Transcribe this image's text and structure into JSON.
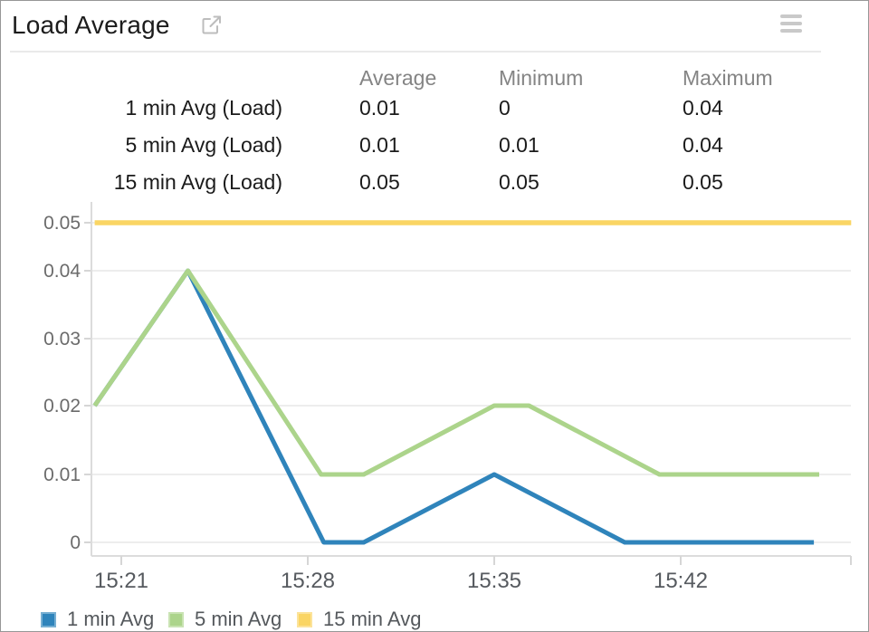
{
  "header": {
    "title": "Load Average"
  },
  "stats_table": {
    "columns": [
      "Average",
      "Minimum",
      "Maximum"
    ],
    "rows": [
      {
        "label": "1 min Avg (Load)",
        "average": "0.01",
        "minimum": "0",
        "maximum": "0.04"
      },
      {
        "label": "5 min Avg (Load)",
        "average": "0.01",
        "minimum": "0.01",
        "maximum": "0.04"
      },
      {
        "label": "15 min Avg (Load)",
        "average": "0.05",
        "minimum": "0.05",
        "maximum": "0.05"
      }
    ]
  },
  "chart_data": {
    "type": "line",
    "title": "Load Average",
    "xlabel": "",
    "ylabel": "",
    "x_unit": "minutes after 15:00",
    "ylim": [
      0,
      0.05
    ],
    "grid": true,
    "legend_position": "bottom",
    "x_axis": {
      "tick_labels": [
        "15:21",
        "15:28",
        "15:35",
        "15:42"
      ],
      "tick_minutes": [
        21,
        28,
        35,
        42
      ]
    },
    "y_axis": {
      "tick_labels": [
        "0",
        "0.01",
        "0.02",
        "0.03",
        "0.04",
        "0.05"
      ],
      "tick_values": [
        0,
        0.01,
        0.02,
        0.03,
        0.04,
        0.05
      ]
    },
    "series": [
      {
        "name": "1 min Avg",
        "color": "#2f84bb",
        "points": [
          [
            20,
            0.02
          ],
          [
            23.5,
            0.04
          ],
          [
            28.6,
            0
          ],
          [
            30.1,
            0
          ],
          [
            35,
            0.01
          ],
          [
            39.9,
            0
          ],
          [
            47,
            0
          ]
        ]
      },
      {
        "name": "5 min Avg",
        "color": "#acd48b",
        "points": [
          [
            20,
            0.02
          ],
          [
            23.5,
            0.04
          ],
          [
            28.5,
            0.01
          ],
          [
            30.1,
            0.01
          ],
          [
            35,
            0.02
          ],
          [
            36.3,
            0.02
          ],
          [
            41.2,
            0.01
          ],
          [
            47.2,
            0.01
          ]
        ]
      },
      {
        "name": "15 min Avg",
        "color": "#fad564",
        "points": [
          [
            20,
            0.05
          ],
          [
            48.4,
            0.05
          ]
        ]
      }
    ]
  }
}
